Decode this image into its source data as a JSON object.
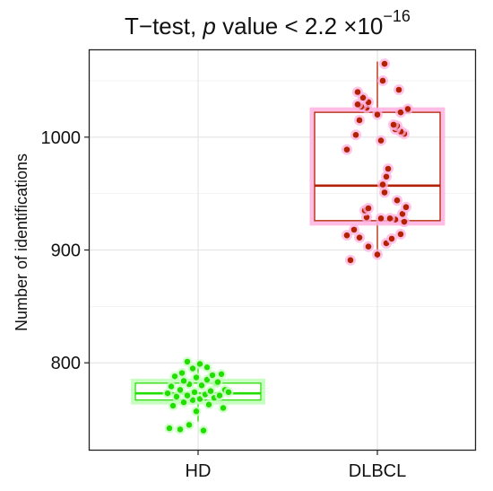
{
  "chart_data": {
    "type": "box",
    "title": {
      "prefix": "T−test, ",
      "p_symbol": "p",
      "middle": " value < 2.2 ×10",
      "exponent": "−16"
    },
    "xlabel": "",
    "ylabel": "Number of identifications",
    "categories": [
      "HD",
      "DLBCL"
    ],
    "y_ticks": [
      800,
      900,
      1000
    ],
    "ylim": [
      723,
      1077
    ],
    "grid": true,
    "legend": "none",
    "colors": {
      "HD": "#22dd00",
      "DLBCL": "#b22200",
      "DLBCL_halo": "#ffb0e0"
    },
    "groups": [
      {
        "name": "HD",
        "box": {
          "whisker_low": 748,
          "q1": 767,
          "median": 773,
          "q3": 782,
          "whisker_high": 797
        },
        "points": [
          {
            "jx": -0.32,
            "y": 742
          },
          {
            "jx": -0.2,
            "y": 741
          },
          {
            "jx": -0.1,
            "y": 745
          },
          {
            "jx": 0.06,
            "y": 740
          },
          {
            "jx": -0.02,
            "y": 757
          },
          {
            "jx": -0.28,
            "y": 762
          },
          {
            "jx": -0.16,
            "y": 765
          },
          {
            "jx": 0.12,
            "y": 763
          },
          {
            "jx": 0.28,
            "y": 760
          },
          {
            "jx": -0.06,
            "y": 767
          },
          {
            "jx": 0.02,
            "y": 768
          },
          {
            "jx": 0.18,
            "y": 769
          },
          {
            "jx": -0.24,
            "y": 770
          },
          {
            "jx": -0.12,
            "y": 771
          },
          {
            "jx": 0.08,
            "y": 772
          },
          {
            "jx": 0.24,
            "y": 771
          },
          {
            "jx": -0.04,
            "y": 774
          },
          {
            "jx": 0.14,
            "y": 775
          },
          {
            "jx": -0.2,
            "y": 776
          },
          {
            "jx": 0.3,
            "y": 776
          },
          {
            "jx": -0.3,
            "y": 779
          },
          {
            "jx": -0.1,
            "y": 781
          },
          {
            "jx": 0.04,
            "y": 780
          },
          {
            "jx": 0.2,
            "y": 782
          },
          {
            "jx": -0.16,
            "y": 784
          },
          {
            "jx": 0.1,
            "y": 785
          },
          {
            "jx": -0.26,
            "y": 788
          },
          {
            "jx": -0.02,
            "y": 787
          },
          {
            "jx": 0.16,
            "y": 789
          },
          {
            "jx": 0.26,
            "y": 790
          },
          {
            "jx": -0.18,
            "y": 791
          },
          {
            "jx": -0.06,
            "y": 795
          },
          {
            "jx": 0.1,
            "y": 796
          },
          {
            "jx": 0.02,
            "y": 799
          },
          {
            "jx": -0.12,
            "y": 801
          },
          {
            "jx": 0.22,
            "y": 783
          },
          {
            "jx": -0.34,
            "y": 773
          },
          {
            "jx": 0.34,
            "y": 774
          }
        ]
      },
      {
        "name": "DLBCL",
        "box": {
          "whisker_low": 893,
          "q1": 926,
          "median": 957,
          "q3": 1022,
          "whisker_high": 1067
        },
        "points": [
          {
            "jx": -0.3,
            "y": 891
          },
          {
            "jx": 0.0,
            "y": 896
          },
          {
            "jx": -0.1,
            "y": 903
          },
          {
            "jx": 0.1,
            "y": 906
          },
          {
            "jx": 0.16,
            "y": 910
          },
          {
            "jx": -0.2,
            "y": 911
          },
          {
            "jx": -0.34,
            "y": 913
          },
          {
            "jx": 0.26,
            "y": 914
          },
          {
            "jx": -0.26,
            "y": 918
          },
          {
            "jx": 0.3,
            "y": 925
          },
          {
            "jx": 0.2,
            "y": 927
          },
          {
            "jx": 0.14,
            "y": 928
          },
          {
            "jx": 0.04,
            "y": 928
          },
          {
            "jx": -0.12,
            "y": 929
          },
          {
            "jx": 0.28,
            "y": 932
          },
          {
            "jx": -0.14,
            "y": 935
          },
          {
            "jx": -0.1,
            "y": 937
          },
          {
            "jx": 0.32,
            "y": 938
          },
          {
            "jx": 0.22,
            "y": 944
          },
          {
            "jx": 0.08,
            "y": 951
          },
          {
            "jx": 0.06,
            "y": 958
          },
          {
            "jx": 0.1,
            "y": 965
          },
          {
            "jx": 0.12,
            "y": 972
          },
          {
            "jx": -0.34,
            "y": 989
          },
          {
            "jx": 0.04,
            "y": 997
          },
          {
            "jx": -0.24,
            "y": 1002
          },
          {
            "jx": 0.3,
            "y": 1003
          },
          {
            "jx": 0.26,
            "y": 1005
          },
          {
            "jx": 0.2,
            "y": 1007
          },
          {
            "jx": 0.22,
            "y": 1010
          },
          {
            "jx": 0.18,
            "y": 1011
          },
          {
            "jx": -0.2,
            "y": 1015
          },
          {
            "jx": 0.0,
            "y": 1020
          },
          {
            "jx": 0.26,
            "y": 1022
          },
          {
            "jx": 0.34,
            "y": 1025
          },
          {
            "jx": -0.12,
            "y": 1026
          },
          {
            "jx": -0.18,
            "y": 1027
          },
          {
            "jx": -0.22,
            "y": 1029
          },
          {
            "jx": -0.1,
            "y": 1031
          },
          {
            "jx": -0.16,
            "y": 1035
          },
          {
            "jx": -0.22,
            "y": 1040
          },
          {
            "jx": 0.24,
            "y": 1042
          },
          {
            "jx": 0.06,
            "y": 1050
          },
          {
            "jx": 0.08,
            "y": 1065
          }
        ]
      }
    ]
  }
}
